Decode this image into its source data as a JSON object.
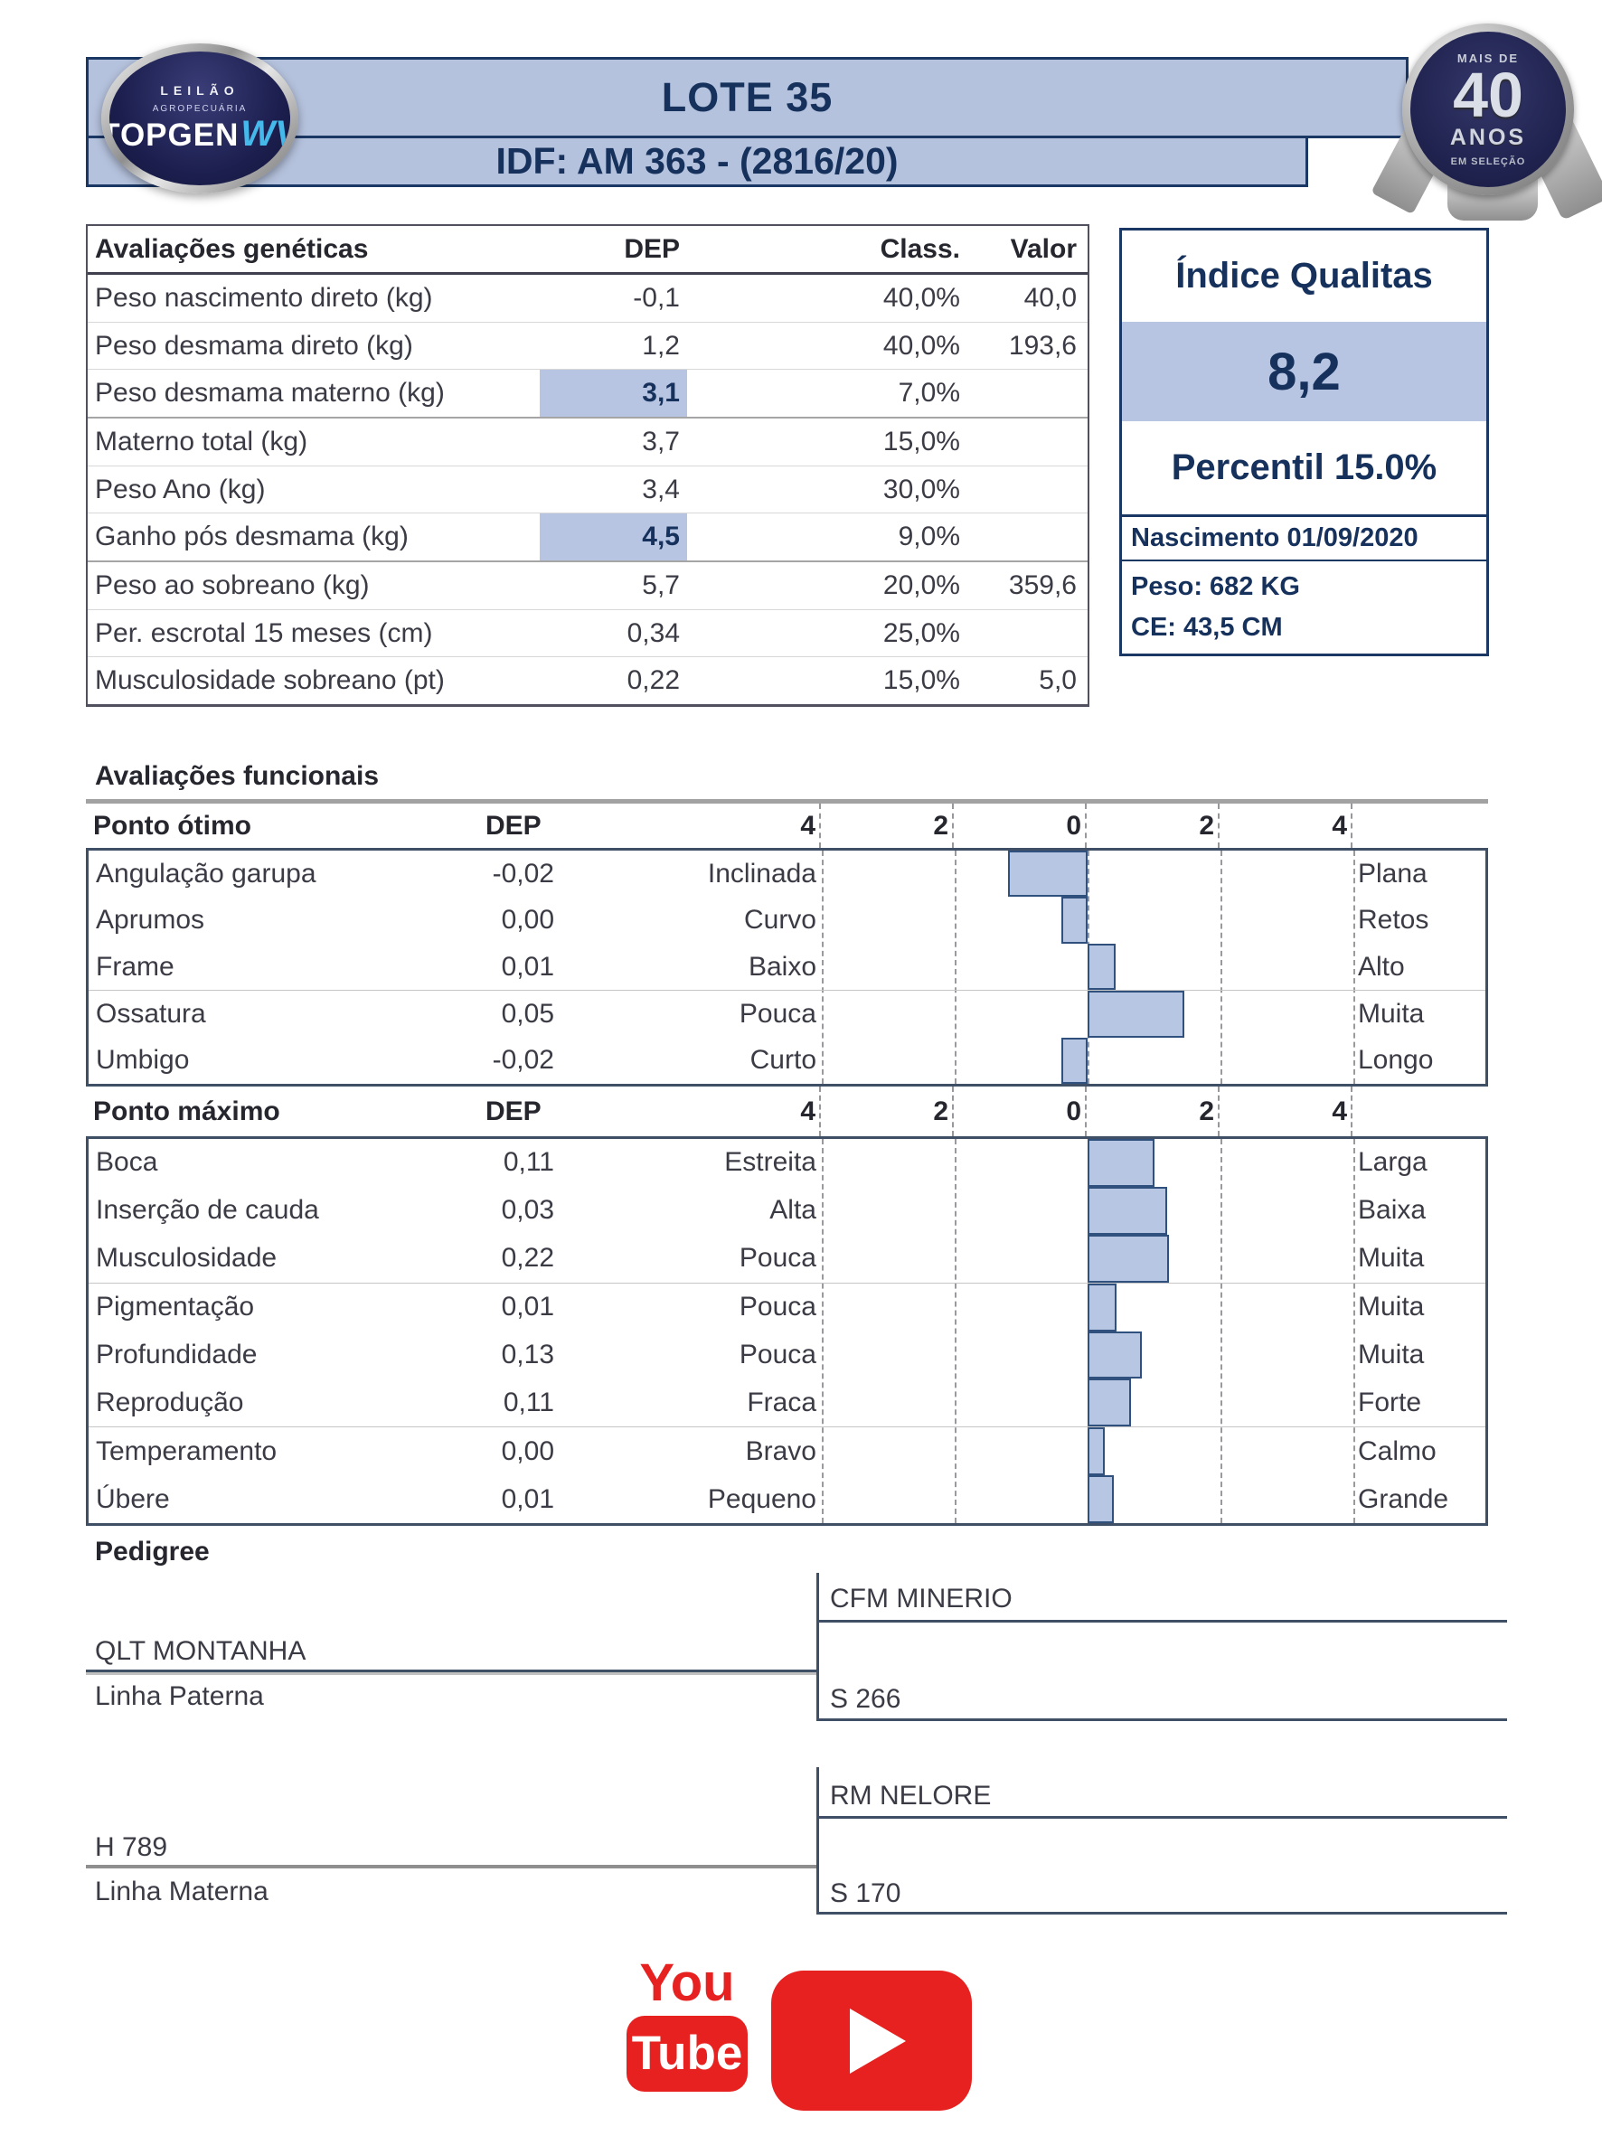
{
  "header": {
    "lot_title": "LOTE 35",
    "idf_line": "IDF: AM 363 - (2816/20)",
    "logo": {
      "top_word": "LEILÃO",
      "subtitle": "AGROPECUÁRIA",
      "brand": "TOPGEN",
      "brand_suffix": "WV"
    },
    "badge": {
      "arc_top": "MAIS DE",
      "number": "40",
      "word": "ANOS",
      "arc_bottom": "EM SELEÇÃO"
    }
  },
  "genetics": {
    "title": "Avaliações genéticas",
    "col_dep": "DEP",
    "col_class": "Class.",
    "col_valor": "Valor",
    "rows": [
      {
        "label": "Peso nascimento direto (kg)",
        "dep": "-0,1",
        "cls": "40,0%",
        "valor": "40,0",
        "highlight": false,
        "strong_divider_before": false
      },
      {
        "label": "Peso desmama direto (kg)",
        "dep": "1,2",
        "cls": "40,0%",
        "valor": "193,6",
        "highlight": false,
        "strong_divider_before": false
      },
      {
        "label": "Peso desmama materno (kg)",
        "dep": "3,1",
        "cls": "7,0%",
        "valor": "",
        "highlight": true,
        "strong_divider_before": false
      },
      {
        "label": "Materno total (kg)",
        "dep": "3,7",
        "cls": "15,0%",
        "valor": "",
        "highlight": false,
        "strong_divider_before": true
      },
      {
        "label": "Peso Ano (kg)",
        "dep": "3,4",
        "cls": "30,0%",
        "valor": "",
        "highlight": false,
        "strong_divider_before": false
      },
      {
        "label": "Ganho pós desmama (kg)",
        "dep": "4,5",
        "cls": "9,0%",
        "valor": "",
        "highlight": true,
        "strong_divider_before": false
      },
      {
        "label": "Peso ao sobreano (kg)",
        "dep": "5,7",
        "cls": "20,0%",
        "valor": "359,6",
        "highlight": false,
        "strong_divider_before": true
      },
      {
        "label": "Per. escrotal 15 meses (cm)",
        "dep": "0,34",
        "cls": "25,0%",
        "valor": "",
        "highlight": false,
        "strong_divider_before": false
      },
      {
        "label": "Musculosidade sobreano (pt)",
        "dep": "0,22",
        "cls": "15,0%",
        "valor": "5,0",
        "highlight": false,
        "strong_divider_before": false
      }
    ]
  },
  "index_panel": {
    "title": "Índice Qualitas",
    "value": "8,2",
    "percentile": "Percentil 15.0%",
    "birth": "Nascimento 01/09/2020",
    "weight": "Peso: 682 KG",
    "scrotal": "CE: 43,5 CM"
  },
  "functional": {
    "title": "Avaliações funcionais",
    "axis_labels": [
      "4",
      "2",
      "0",
      "2",
      "4"
    ],
    "axis_ticks": [
      -4,
      -2,
      0,
      2,
      4
    ],
    "chart_type": "diverging-bar",
    "tables": [
      {
        "header": "Ponto ótimo",
        "dep_header": "DEP",
        "rows": [
          {
            "label": "Angulação garupa",
            "dep": "-0,02",
            "low": "Inclinada",
            "high": "Plana",
            "bar": -1.2,
            "divider_before": false
          },
          {
            "label": "Aprumos",
            "dep": "0,00",
            "low": "Curvo",
            "high": "Retos",
            "bar": -0.4,
            "divider_before": false
          },
          {
            "label": "Frame",
            "dep": "0,01",
            "low": "Baixo",
            "high": "Alto",
            "bar": 0.42,
            "divider_before": false
          },
          {
            "label": "Ossatura",
            "dep": "0,05",
            "low": "Pouca",
            "high": "Muita",
            "bar": 1.45,
            "divider_before": true
          },
          {
            "label": "Umbigo",
            "dep": "-0,02",
            "low": "Curto",
            "high": "Longo",
            "bar": -0.4,
            "divider_before": false
          }
        ]
      },
      {
        "header": "Ponto máximo",
        "dep_header": "DEP",
        "rows": [
          {
            "label": "Boca",
            "dep": "0,11",
            "low": "Estreita",
            "high": "Larga",
            "bar": 1.0,
            "divider_before": false
          },
          {
            "label": "Inserção de cauda",
            "dep": "0,03",
            "low": "Alta",
            "high": "Baixa",
            "bar": 1.2,
            "divider_before": false
          },
          {
            "label": "Musculosidade",
            "dep": "0,22",
            "low": "Pouca",
            "high": "Muita",
            "bar": 1.22,
            "divider_before": false
          },
          {
            "label": "Pigmentação",
            "dep": "0,01",
            "low": "Pouca",
            "high": "Muita",
            "bar": 0.43,
            "divider_before": true
          },
          {
            "label": "Profundidade",
            "dep": "0,13",
            "low": "Pouca",
            "high": "Muita",
            "bar": 0.82,
            "divider_before": false
          },
          {
            "label": "Reprodução",
            "dep": "0,11",
            "low": "Fraca",
            "high": "Forte",
            "bar": 0.65,
            "divider_before": false
          },
          {
            "label": "Temperamento",
            "dep": "0,00",
            "low": "Bravo",
            "high": "Calmo",
            "bar": 0.26,
            "divider_before": true
          },
          {
            "label": "Úbere",
            "dep": "0,01",
            "low": "Pequeno",
            "high": "Grande",
            "bar": 0.4,
            "divider_before": false
          }
        ]
      }
    ]
  },
  "pedigree": {
    "title": "Pedigree",
    "paternal": {
      "parent": "QLT MONTANHA",
      "caption": "Linha Paterna",
      "sire": "CFM MINERIO",
      "dam": "S 266"
    },
    "maternal": {
      "parent": "H 789",
      "caption": "Linha Materna",
      "sire": "RM NELORE",
      "dam": "S 170"
    }
  },
  "footer": {
    "youtube_word_top": "You",
    "youtube_word_bottom": "Tube"
  },
  "colors": {
    "header_bg": "#b5c2dd",
    "navy": "#15315c",
    "navy_border": "#1b3764",
    "highlight": "#b7c5e3",
    "bar_fill": "#b6c6e3",
    "bar_border": "#30517e",
    "slate_border": "#3f4f66",
    "youtube_red": "#e7211f",
    "logo_cyan": "#45b9ea"
  }
}
